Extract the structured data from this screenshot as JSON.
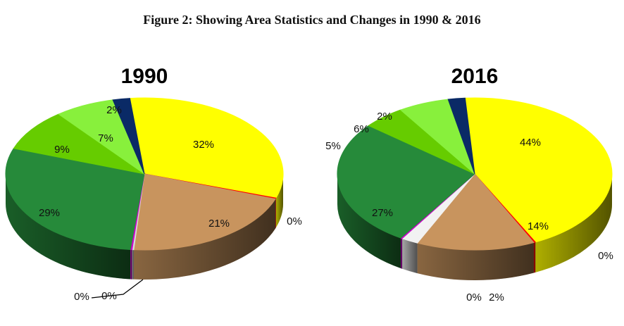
{
  "figure_title": "Figure 2: Showing Area Statistics and Changes in 1990 & 2016",
  "chart_data": [
    {
      "type": "pie",
      "title": "1990",
      "slices": [
        {
          "label": "32%",
          "value": 32,
          "color": "#ffff00"
        },
        {
          "label": "0%",
          "value": 0.2,
          "color": "#ff0000"
        },
        {
          "label": "21%",
          "value": 21,
          "color": "#c8945e"
        },
        {
          "label": "0%",
          "value": 0.2,
          "color": "#d9d9d9"
        },
        {
          "label": "0%",
          "value": 0.2,
          "color": "#cc00cc"
        },
        {
          "label": "29%",
          "value": 29,
          "color": "#268a3a"
        },
        {
          "label": "9%",
          "value": 9,
          "color": "#66cc00"
        },
        {
          "label": "7%",
          "value": 7,
          "color": "#88f03c"
        },
        {
          "label": "2%",
          "value": 2,
          "color": "#0a2a66"
        }
      ]
    },
    {
      "type": "pie",
      "title": "2016",
      "slices": [
        {
          "label": "44%",
          "value": 44,
          "color": "#ffff00"
        },
        {
          "label": "0%",
          "value": 0.2,
          "color": "#ff0000"
        },
        {
          "label": "14%",
          "value": 14,
          "color": "#c8945e"
        },
        {
          "label": "2%",
          "value": 2,
          "color": "#f2f2f2"
        },
        {
          "label": "0%",
          "value": 0.2,
          "color": "#cc00cc"
        },
        {
          "label": "27%",
          "value": 27,
          "color": "#268a3a"
        },
        {
          "label": "5%",
          "value": 5,
          "color": "#66cc00"
        },
        {
          "label": "6%",
          "value": 6,
          "color": "#88f03c"
        },
        {
          "label": "2%",
          "value": 2,
          "color": "#0a2a66"
        }
      ]
    }
  ]
}
